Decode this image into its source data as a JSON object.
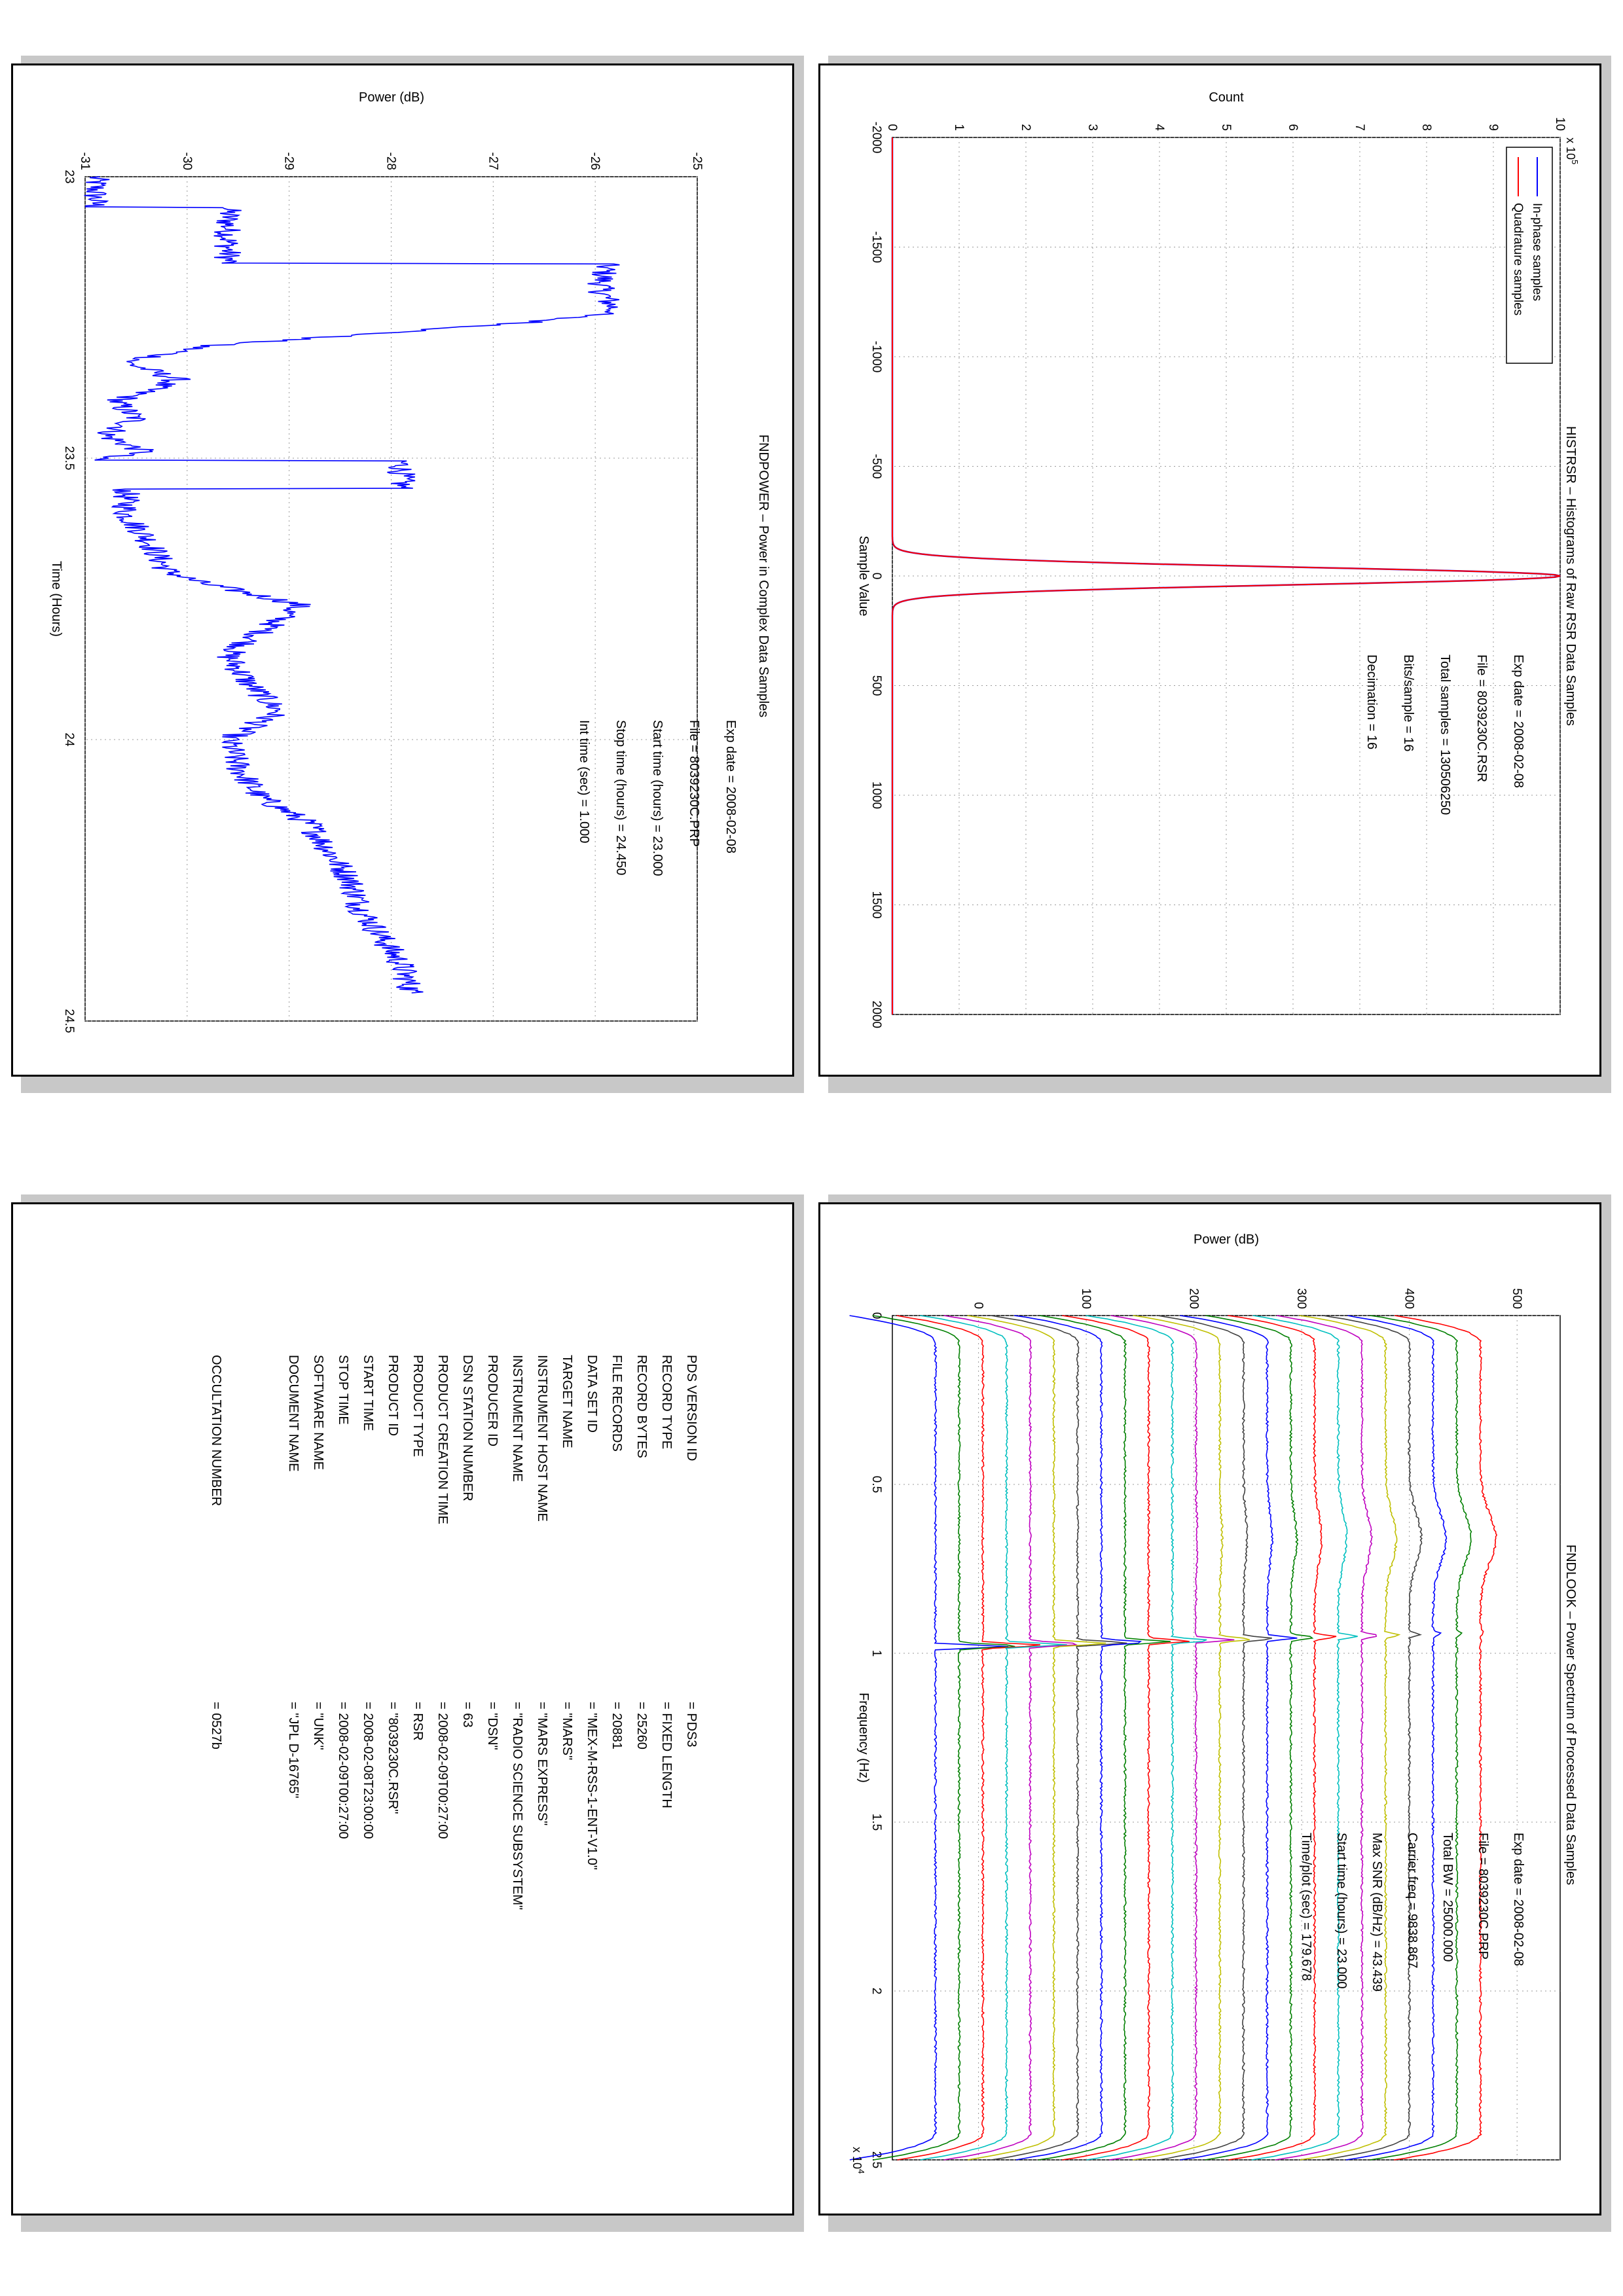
{
  "histogram": {
    "chart_data": {
      "type": "line",
      "title": "HISTRSR – Histograms of Raw RSR Data Samples",
      "xlabel": "Sample Value",
      "ylabel": "Count",
      "y_exponent_label": "x 10",
      "y_exponent_power": "5",
      "xlim": [
        -2000,
        2000
      ],
      "ylim": [
        0,
        10
      ],
      "x_ticks": [
        "-2000",
        "-1500",
        "-1000",
        "-500",
        "0",
        "500",
        "1000",
        "1500",
        "2000"
      ],
      "y_ticks": [
        "0",
        "1",
        "2",
        "3",
        "4",
        "5",
        "6",
        "7",
        "8",
        "9",
        "10"
      ],
      "grid": true,
      "legend_placement": "top-left",
      "series": [
        {
          "name": "In-phase samples",
          "color": "#0000ff",
          "peak_x": 0,
          "peak_y": 10,
          "sigma": 40
        },
        {
          "name": "Quadrature samples",
          "color": "#ff0000",
          "peak_x": 0,
          "peak_y": 10,
          "sigma": 40
        }
      ],
      "annotations": [
        "Exp date = 2008-02-08",
        "File = 8039230C.RSR",
        "Total samples = 130506250",
        "Bits/sample  =   16",
        "Decimation   =   16"
      ]
    }
  },
  "power": {
    "chart_data": {
      "type": "line",
      "title": "FNDPOWER – Power in Complex Data Samples",
      "xlabel": "Time (Hours)",
      "ylabel": "Power (dB)",
      "xlim": [
        23,
        24.5
      ],
      "ylim": [
        -31,
        -25
      ],
      "x_ticks": [
        "23",
        "23.5",
        "24",
        "24.5"
      ],
      "y_ticks": [
        "-31",
        "-30",
        "-29",
        "-28",
        "-27",
        "-26",
        "-25"
      ],
      "grid": true,
      "series": [
        {
          "name": "",
          "color": "#0000ff",
          "x": [
            23.0,
            23.05,
            23.06,
            23.15,
            23.16,
            23.2,
            23.24,
            23.26,
            23.3,
            23.33,
            23.36,
            23.4,
            23.43,
            23.46,
            23.49,
            23.5,
            23.51,
            23.55,
            23.56,
            23.6,
            23.64,
            23.7,
            23.72,
            23.74,
            23.76,
            23.8,
            23.85,
            23.9,
            23.95,
            24.0,
            24.05,
            24.1,
            24.15,
            24.2,
            24.25,
            24.3,
            24.35,
            24.4,
            24.45
          ],
          "y": [
            -30.9,
            -30.9,
            -29.6,
            -29.6,
            -25.9,
            -25.95,
            -25.8,
            -26.7,
            -29.8,
            -30.6,
            -30.1,
            -30.7,
            -30.5,
            -30.8,
            -30.4,
            -30.9,
            -27.9,
            -27.9,
            -30.6,
            -30.6,
            -30.4,
            -30.2,
            -29.9,
            -29.4,
            -28.9,
            -29.2,
            -29.6,
            -29.4,
            -29.1,
            -29.6,
            -29.5,
            -29.3,
            -28.8,
            -28.6,
            -28.4,
            -28.3,
            -28.1,
            -27.9,
            -27.8
          ]
        }
      ],
      "annotations": [
        "Exp date = 2008-02-08",
        "File = 8039230C.PRP",
        "Start time (hours) = 23.000",
        "Stop time (hours) =  24.450",
        "Int time (sec) =     1.000"
      ]
    }
  },
  "spectrum": {
    "chart_data": {
      "type": "line",
      "title": "FNDLOOK – Power Spectrum of Processed Data Samples",
      "xlabel": "Frequency (Hz)",
      "ylabel": "Power (dB)",
      "x_exponent_label": "x 10",
      "x_exponent_power": "4",
      "xlim": [
        0,
        2.5
      ],
      "ylim": [
        -80,
        540
      ],
      "x_ticks": [
        "0",
        "0.5",
        "1",
        "1.5",
        "2",
        "2.5"
      ],
      "y_ticks": [
        "0",
        "100",
        "200",
        "300",
        "400",
        "500"
      ],
      "grid": true,
      "series_count": 24,
      "series_offset_db": 22,
      "series_colors": [
        "#0000ff",
        "#007f00",
        "#ff0000",
        "#00bfbf",
        "#bf00bf",
        "#bfbf00",
        "#404040"
      ],
      "annotations": [
        "Exp date = 2008-02-08",
        "File = 8039230C.PRP",
        "Total BW =      25000.000",
        "Carrier freq =    9838.867",
        "Max SNR (dB/Hz) =    43.439",
        "Start time (hours) =  23.000",
        "Time/plot (sec) =    179.678"
      ]
    }
  },
  "label_list": {
    "items": [
      {
        "name": "PDS VERSION ID",
        "value": "=  PDS3"
      },
      {
        "name": "RECORD TYPE",
        "value": "=  FIXED LENGTH"
      },
      {
        "name": "RECORD BYTES",
        "value": "=  25260"
      },
      {
        "name": "FILE RECORDS",
        "value": "=  20881"
      },
      {
        "name": "DATA SET ID",
        "value": "=  \"MEX-M-RSS-1-ENT-V1.0\""
      },
      {
        "name": "TARGET NAME",
        "value": "=  \"MARS\""
      },
      {
        "name": "INSTRUMENT HOST NAME",
        "value": "=  \"MARS EXPRESS\""
      },
      {
        "name": "INSTRUMENT NAME",
        "value": "=  \"RADIO SCIENCE SUBSYSTEM\""
      },
      {
        "name": "PRODUCER ID",
        "value": "=  \"DSN\""
      },
      {
        "name": "DSN STATION NUMBER",
        "value": "=  63"
      },
      {
        "name": "PRODUCT CREATION TIME",
        "value": "=  2008-02-09T00:27:00"
      },
      {
        "name": "PRODUCT TYPE",
        "value": "=  RSR"
      },
      {
        "name": "PRODUCT ID",
        "value": "=  \"8039230C.RSR\""
      },
      {
        "name": "START TIME",
        "value": "=  2008-02-08T23:00:00"
      },
      {
        "name": "STOP TIME",
        "value": "=  2008-02-09T00:27:00"
      },
      {
        "name": "SOFTWARE NAME",
        "value": "=  \"UNK\""
      },
      {
        "name": "DOCUMENT NAME",
        "value": "=  \"JPL D-16765\""
      }
    ],
    "occultation": {
      "name": "OCCULTATION NUMBER",
      "value": "=  0527b"
    }
  }
}
